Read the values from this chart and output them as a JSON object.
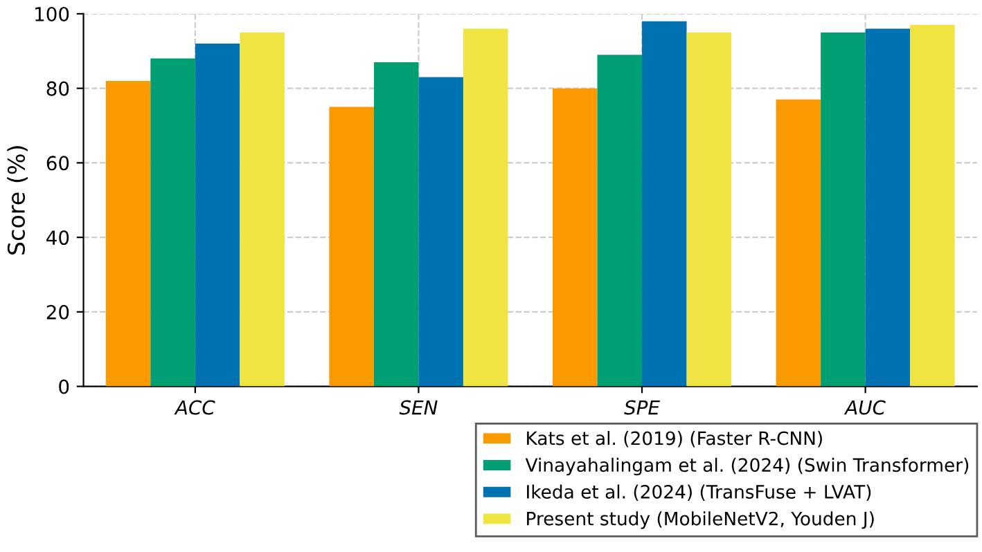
{
  "chart_data": {
    "type": "bar",
    "ylabel": "Score (%)",
    "categories": [
      "ACC",
      "SEN",
      "SPE",
      "AUC"
    ],
    "series": [
      {
        "name": "Kats et al. (2019) (Faster R-CNN)",
        "color": "#f99a00",
        "values": [
          82,
          75,
          80,
          77
        ]
      },
      {
        "name": "Vinayahalingam et al. (2024) (Swin Transformer)",
        "color": "#009e73",
        "values": [
          88,
          87,
          89,
          95
        ]
      },
      {
        "name": "Ikeda et al. (2024) (TransFuse + LVAT)",
        "color": "#0072b2",
        "values": [
          92,
          83,
          98,
          96
        ]
      },
      {
        "name": "Present study (MobileNetV2, Youden J)",
        "color": "#f0e442",
        "values": [
          95,
          96,
          95,
          97
        ]
      }
    ],
    "ylim": [
      0,
      100
    ],
    "yticks": [
      0,
      20,
      40,
      60,
      80,
      100
    ],
    "grid": true,
    "legend": "bottom right"
  }
}
